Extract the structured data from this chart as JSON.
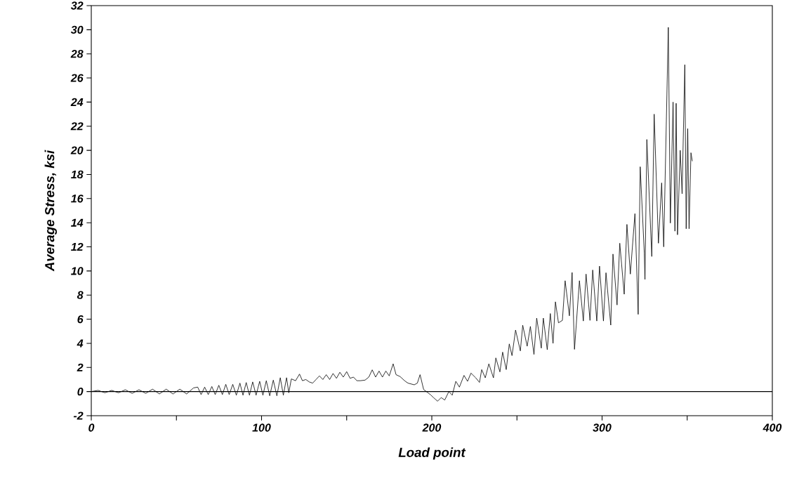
{
  "chart_data": {
    "type": "line",
    "xlabel": "Load point",
    "ylabel": "Average Stress, ksi",
    "xlim": [
      0,
      400
    ],
    "ylim": [
      -2,
      32
    ],
    "xticks": [
      0,
      {
        "value": 50,
        "label": null
      },
      100,
      {
        "value": 150,
        "label": null
      },
      200,
      {
        "value": 250,
        "label": null
      },
      300,
      {
        "value": 350,
        "label": null
      },
      400
    ],
    "yticks": [
      -2,
      0,
      2,
      4,
      6,
      8,
      10,
      12,
      14,
      16,
      18,
      20,
      22,
      24,
      26,
      28,
      30,
      32
    ],
    "grid": false,
    "marker": "none",
    "line_style": "solid",
    "ref_lines": [
      {
        "axis": "y",
        "value": 0,
        "color": "#000000"
      }
    ],
    "series": [
      {
        "color": "#000000",
        "x": [
          0,
          4,
          8,
          12,
          16,
          20,
          24,
          28,
          32,
          36,
          40,
          44,
          48,
          52,
          56,
          60,
          62.5,
          64.5,
          66.6,
          68.7,
          70.8,
          72.8,
          74.9,
          77,
          79,
          81,
          83.1,
          85.2,
          87.3,
          89.1,
          91,
          92.9,
          94.8,
          96.8,
          98.9,
          100.8,
          102.8,
          104.8,
          106.9,
          109,
          111,
          112.8,
          114.7,
          116,
          117.5,
          120,
          122.3,
          124,
          126,
          128,
          130,
          132,
          134,
          136,
          138,
          140,
          142,
          144,
          146,
          148,
          150,
          152,
          154,
          156,
          158,
          160.8,
          163,
          165,
          167,
          169,
          171,
          173,
          175,
          177.3,
          179,
          181.4,
          184,
          186,
          189.7,
          191.5,
          193.1,
          195.2,
          199.3,
          201,
          203.4,
          205.5,
          207.6,
          210,
          212,
          214.1,
          216.2,
          218.9,
          221,
          223,
          225.8,
          228,
          229.3,
          231.4,
          233.5,
          236.2,
          237.6,
          240,
          241.6,
          243.7,
          245.5,
          247.1,
          249.2,
          252,
          253.4,
          256,
          257.9,
          260,
          261.6,
          264.3,
          265.5,
          267.8,
          269.6,
          271.2,
          272.6,
          274.4,
          276.7,
          278.3,
          280.8,
          282.4,
          283.8,
          286.7,
          289,
          290.6,
          292.9,
          294.5,
          296.9,
          298.5,
          300.8,
          302.3,
          305.1,
          306.4,
          308.8,
          310.4,
          313,
          314.6,
          316.6,
          319.3,
          321.2,
          322.4,
          324.8,
          325.2,
          326.3,
          329.2,
          330.6,
          333.1,
          335,
          336.2,
          338.9,
          340.1,
          341.7,
          342.8,
          343.5,
          344.3,
          345.9,
          347,
          348.6,
          349.4,
          350.3,
          351.1,
          352.2,
          353
        ],
        "values": [
          0,
          0.1,
          -0.1,
          0.1,
          -0.1,
          0.15,
          -0.15,
          0.15,
          -0.15,
          0.2,
          -0.2,
          0.2,
          -0.2,
          0.2,
          -0.2,
          0.3,
          0.37,
          -0.25,
          0.37,
          -0.25,
          0.42,
          -0.25,
          0.52,
          -0.25,
          0.6,
          -0.25,
          0.6,
          -0.3,
          0.7,
          -0.3,
          0.75,
          -0.3,
          0.8,
          -0.3,
          0.85,
          -0.3,
          0.9,
          -0.35,
          0.95,
          -0.35,
          1.15,
          -0.3,
          1.15,
          -0.1,
          1.05,
          0.9,
          1.45,
          0.9,
          1.0,
          0.8,
          0.7,
          1.0,
          1.3,
          1.0,
          1.4,
          1.0,
          1.5,
          1.1,
          1.6,
          1.2,
          1.65,
          1.1,
          1.2,
          0.9,
          0.9,
          0.95,
          1.2,
          1.8,
          1.2,
          1.7,
          1.2,
          1.7,
          1.3,
          2.3,
          1.4,
          1.24,
          0.9,
          0.7,
          0.56,
          0.7,
          1.4,
          0.17,
          -0.27,
          -0.5,
          -0.8,
          -0.5,
          -0.7,
          0,
          -0.3,
          0.85,
          0.37,
          1.34,
          0.85,
          1.53,
          1.14,
          0.76,
          1.82,
          1.14,
          2.3,
          1.14,
          2.79,
          1.63,
          3.27,
          1.82,
          3.95,
          2.98,
          5.1,
          3.37,
          5.5,
          3.76,
          5.4,
          3.08,
          6.09,
          3.6,
          6.09,
          3.47,
          6.47,
          4.0,
          7.44,
          5.7,
          5.9,
          9.19,
          6.28,
          9.87,
          3.5,
          9.19,
          5.85,
          9.74,
          5.9,
          10.08,
          5.85,
          10.4,
          5.85,
          9.85,
          5.51,
          11.4,
          7.18,
          12.3,
          8.07,
          13.86,
          9.74,
          14.75,
          6.4,
          18.64,
          11.5,
          9.3,
          20.9,
          11.2,
          23.0,
          12.3,
          17.3,
          12.0,
          30.2,
          13.97,
          24.0,
          13.3,
          23.9,
          13.0,
          20.0,
          16.4,
          27.1,
          13.5,
          21.8,
          13.5,
          19.8,
          19.1
        ]
      }
    ]
  }
}
